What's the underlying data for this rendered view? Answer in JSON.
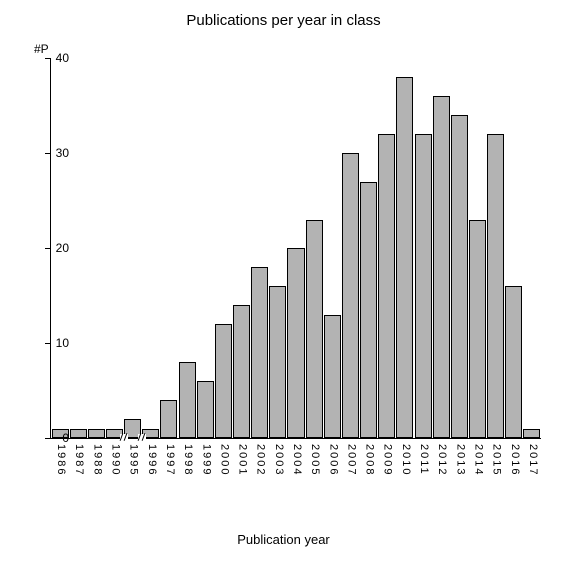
{
  "chart": {
    "type": "bar",
    "title": "Publications per year in class",
    "ylabel": "#P",
    "xlabel": "Publication year",
    "ylim": [
      0,
      40
    ],
    "yticks": [
      0,
      10,
      20,
      30,
      40
    ],
    "categories": [
      "1986",
      "1987",
      "1988",
      "1990",
      "1995",
      "1996",
      "1997",
      "1998",
      "1999",
      "2000",
      "2001",
      "2002",
      "2003",
      "2004",
      "2005",
      "2006",
      "2007",
      "2008",
      "2009",
      "2010",
      "2011",
      "2012",
      "2013",
      "2014",
      "2015",
      "2016",
      "2017"
    ],
    "values": [
      1,
      1,
      1,
      1,
      2,
      1,
      4,
      8,
      6,
      12,
      14,
      18,
      16,
      20,
      23,
      13,
      30,
      27,
      32,
      38,
      32,
      36,
      34,
      23,
      32,
      16,
      1
    ],
    "axis_breaks_after_index": [
      3,
      4
    ],
    "bar_color": "#b3b3b3",
    "bar_border_color": "#000000",
    "background_color": "#ffffff",
    "axis_color": "#000000",
    "title_fontsize": 15,
    "label_fontsize": 13,
    "tick_fontsize": 12,
    "bar_gap_ratio": 0.06
  }
}
